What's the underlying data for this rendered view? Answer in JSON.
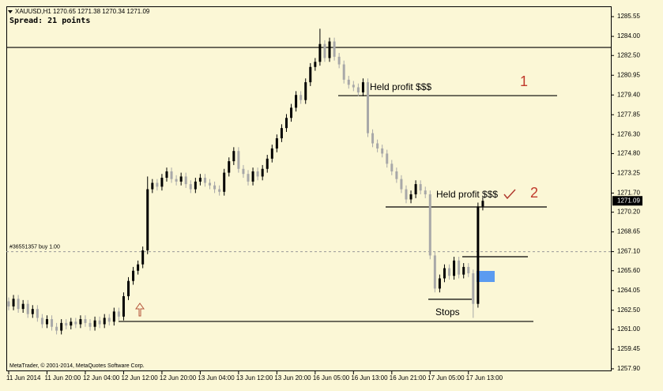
{
  "chart_data": {
    "type": "candlestick",
    "header": "XAUUSD,H1  1270.65 1271.38 1270.34 1271.09",
    "spread": "Spread: 21 points",
    "copyright": "MetaTrader, © 2001-2014, MetaQuotes Software Corp.",
    "categories": [
      "11 Jun 2014",
      null,
      null,
      null,
      null,
      null,
      null,
      null,
      "11 Jun 20:00",
      null,
      null,
      null,
      null,
      null,
      null,
      null,
      "12 Jun 04:00",
      null,
      null,
      null,
      null,
      null,
      null,
      null,
      "12 Jun 12:00",
      null,
      null,
      null,
      null,
      null,
      null,
      null,
      "12 Jun 20:00",
      null,
      null,
      null,
      null,
      null,
      null,
      null,
      "13 Jun 04:00",
      null,
      null,
      null,
      null,
      null,
      null,
      null,
      "13 Jun 12:00",
      null,
      null,
      null,
      null,
      null,
      null,
      null,
      "13 Jun 20:00",
      null,
      null,
      null,
      null,
      null,
      null,
      null,
      "16 Jun 05:00",
      null,
      null,
      null,
      null,
      null,
      null,
      null,
      "16 Jun 13:00",
      null,
      null,
      null,
      null,
      null,
      null,
      null,
      "16 Jun 21:00",
      null,
      null,
      null,
      null,
      null,
      null,
      null,
      "17 Jun 05:00",
      null,
      null,
      null,
      null,
      null,
      null,
      null,
      "17 Jun 13:00",
      null,
      null,
      null
    ],
    "open": [
      1263.2,
      1262.8,
      1263.4,
      1262.6,
      1263.0,
      1262.2,
      1262.6,
      1261.9,
      1261.4,
      1261.8,
      1261.2,
      1260.9,
      1261.5,
      1261.3,
      1261.6,
      1261.4,
      1261.8,
      1261.5,
      1261.2,
      1261.7,
      1261.4,
      1261.9,
      1261.6,
      1262.4,
      1262.0,
      1263.6,
      1264.8,
      1265.6,
      1266.1,
      1267.2,
      1272.0,
      1272.5,
      1272.2,
      1272.9,
      1273.4,
      1272.8,
      1272.6,
      1273.0,
      1272.4,
      1272.0,
      1272.6,
      1272.9,
      1272.5,
      1272.3,
      1272.0,
      1271.8,
      1273.3,
      1274.2,
      1275.0,
      1273.6,
      1273.2,
      1272.6,
      1273.4,
      1273.0,
      1273.6,
      1274.4,
      1275.2,
      1276.0,
      1276.8,
      1277.6,
      1278.4,
      1279.4,
      1279.0,
      1280.4,
      1281.6,
      1282.0,
      1283.4,
      1282.3,
      1283.6,
      1282.4,
      1281.8,
      1280.6,
      1280.2,
      1280.0,
      1279.6,
      1280.4,
      1276.4,
      1275.6,
      1275.2,
      1274.8,
      1274.0,
      1273.4,
      1272.8,
      1272.0,
      1271.2,
      1271.6,
      1272.4,
      1271.9,
      1271.6,
      1266.8,
      1264.2,
      1265.0,
      1265.8,
      1265.2,
      1266.4,
      1265.3,
      1265.9,
      1265.4,
      1263.0,
      1270.65
    ],
    "high": [
      1263.5,
      1263.7,
      1263.7,
      1263.3,
      1263.3,
      1262.9,
      1262.9,
      1262.2,
      1262.1,
      1262.1,
      1261.5,
      1261.8,
      1261.8,
      1261.9,
      1261.9,
      1262.1,
      1262.1,
      1261.8,
      1262.0,
      1262.0,
      1262.2,
      1262.2,
      1262.7,
      1262.7,
      1263.9,
      1265.1,
      1265.9,
      1266.4,
      1267.5,
      1273.0,
      1272.8,
      1272.8,
      1273.2,
      1273.7,
      1273.7,
      1273.1,
      1273.3,
      1273.3,
      1272.7,
      1272.9,
      1273.2,
      1273.2,
      1272.8,
      1272.6,
      1272.3,
      1273.6,
      1274.5,
      1275.3,
      1275.3,
      1273.9,
      1273.5,
      1273.7,
      1273.7,
      1273.9,
      1274.7,
      1275.5,
      1276.3,
      1277.1,
      1277.9,
      1278.7,
      1279.7,
      1279.7,
      1280.7,
      1281.9,
      1282.3,
      1284.6,
      1283.7,
      1283.9,
      1283.9,
      1282.7,
      1282.1,
      1280.9,
      1280.5,
      1280.3,
      1280.7,
      1280.7,
      1276.7,
      1275.9,
      1275.5,
      1275.1,
      1274.3,
      1273.7,
      1273.1,
      1272.3,
      1271.9,
      1272.7,
      1272.7,
      1272.2,
      1271.9,
      1267.1,
      1265.3,
      1266.1,
      1266.1,
      1266.7,
      1266.7,
      1266.2,
      1266.2,
      1265.7,
      1270.95,
      1271.38
    ],
    "low": [
      1262.5,
      1262.5,
      1262.3,
      1262.3,
      1261.9,
      1261.9,
      1261.6,
      1261.1,
      1261.1,
      1260.9,
      1260.6,
      1260.6,
      1261.0,
      1261.0,
      1261.1,
      1261.1,
      1261.2,
      1260.9,
      1260.9,
      1261.1,
      1261.1,
      1261.3,
      1261.3,
      1261.7,
      1261.7,
      1263.3,
      1264.5,
      1265.3,
      1265.8,
      1266.9,
      1271.7,
      1271.9,
      1271.9,
      1272.6,
      1272.5,
      1272.3,
      1272.3,
      1272.1,
      1271.7,
      1271.7,
      1272.3,
      1272.2,
      1272.0,
      1271.7,
      1271.5,
      1271.5,
      1273.0,
      1273.9,
      1273.3,
      1272.9,
      1272.3,
      1272.3,
      1272.7,
      1272.7,
      1273.3,
      1274.1,
      1274.9,
      1275.7,
      1276.5,
      1277.3,
      1278.1,
      1278.7,
      1278.7,
      1280.1,
      1281.3,
      1281.7,
      1282.0,
      1282.0,
      1282.1,
      1281.5,
      1280.3,
      1279.9,
      1279.7,
      1279.3,
      1279.3,
      1276.1,
      1275.3,
      1274.9,
      1274.5,
      1273.7,
      1273.1,
      1272.5,
      1271.7,
      1270.9,
      1270.9,
      1271.3,
      1271.6,
      1271.3,
      1266.5,
      1263.9,
      1263.9,
      1264.7,
      1264.9,
      1264.9,
      1265.0,
      1265.0,
      1265.1,
      1261.9,
      1262.7,
      1270.34
    ],
    "close": [
      1262.8,
      1263.4,
      1262.6,
      1263.0,
      1262.2,
      1262.6,
      1261.9,
      1261.4,
      1261.8,
      1261.2,
      1260.9,
      1261.5,
      1261.3,
      1261.6,
      1261.4,
      1261.8,
      1261.5,
      1261.2,
      1261.7,
      1261.4,
      1261.9,
      1261.6,
      1262.4,
      1262.0,
      1263.6,
      1264.8,
      1265.6,
      1266.1,
      1267.2,
      1272.0,
      1272.5,
      1272.2,
      1272.9,
      1273.4,
      1272.8,
      1272.6,
      1273.0,
      1272.4,
      1272.0,
      1272.6,
      1272.9,
      1272.5,
      1272.3,
      1272.0,
      1271.8,
      1273.3,
      1274.2,
      1275.0,
      1273.6,
      1273.2,
      1272.6,
      1273.4,
      1273.0,
      1273.6,
      1274.4,
      1275.2,
      1276.0,
      1276.8,
      1277.6,
      1278.4,
      1279.4,
      1279.0,
      1280.4,
      1281.6,
      1282.0,
      1283.4,
      1282.3,
      1283.6,
      1282.4,
      1281.8,
      1280.6,
      1280.2,
      1280.0,
      1279.6,
      1280.4,
      1276.4,
      1275.6,
      1275.2,
      1274.8,
      1274.0,
      1273.4,
      1272.8,
      1272.0,
      1271.2,
      1271.6,
      1272.4,
      1271.9,
      1271.6,
      1266.8,
      1264.2,
      1265.0,
      1265.8,
      1265.2,
      1266.4,
      1265.3,
      1265.9,
      1265.4,
      1263.0,
      1270.65,
      1271.09
    ],
    "up_color": "#000000",
    "down_color": "#a8a8a8",
    "ylim": [
      1257.71,
      1286.36
    ],
    "yticks": [
      1285.55,
      {
        "value": 1284,
        "label": "1284.00"
      },
      {
        "value": 1282.5,
        "label": "1282.50"
      },
      1280.95,
      {
        "value": 1279.4,
        "label": "1279.40"
      },
      1277.85,
      {
        "value": 1276.3,
        "label": "1276.30"
      },
      {
        "value": 1274.8,
        "label": "1274.80"
      },
      1273.25,
      {
        "value": 1271.7,
        "label": "1271.70"
      },
      {
        "value": 1270.2,
        "label": "1270.20"
      },
      1268.65,
      {
        "value": 1267.1,
        "label": "1267.10"
      },
      {
        "value": 1265.6,
        "label": "1265.60"
      },
      1264.05,
      {
        "value": 1262.5,
        "label": "1262.50"
      },
      {
        "value": 1261,
        "label": "1261.00"
      },
      1259.45,
      {
        "value": 1257.9,
        "label": "1257.90"
      }
    ],
    "levels": [
      1283.13,
      1261.62,
      1279.35,
      1270.61,
      1263.36,
      1266.7
    ],
    "order": {
      "label": "#36551357 buy 1.00",
      "price": 1267.1
    },
    "annotations": [
      "Held profit $$$",
      "1",
      "Held profit $$$",
      "2",
      "Stops"
    ]
  }
}
